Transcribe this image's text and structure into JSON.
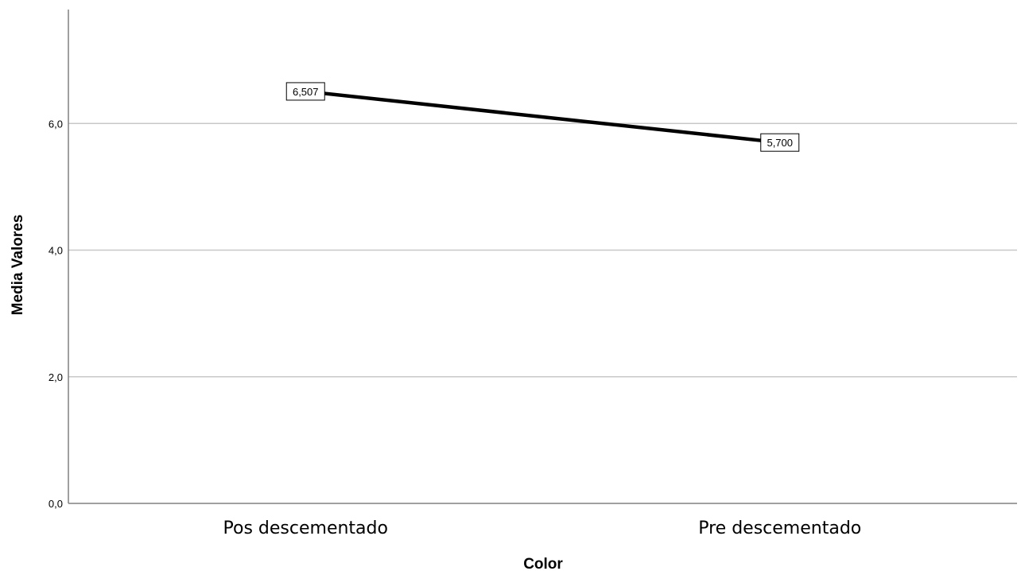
{
  "chart_data": {
    "type": "line",
    "categories": [
      "Pos descementado",
      "Pre descementado"
    ],
    "values": [
      6.507,
      5.7
    ],
    "data_labels": [
      "6,507",
      "5,700"
    ],
    "xlabel": "Color",
    "ylabel": "Media Valores",
    "ylim": [
      0,
      7.8
    ],
    "yticks": [
      0,
      2,
      4,
      6
    ],
    "ytick_labels": [
      "0,0",
      "2,0",
      "4,0",
      "6,0"
    ],
    "grid": true,
    "colors": {
      "line": "#000000",
      "grid": "#c8c8c8",
      "axis": "#808080"
    }
  }
}
